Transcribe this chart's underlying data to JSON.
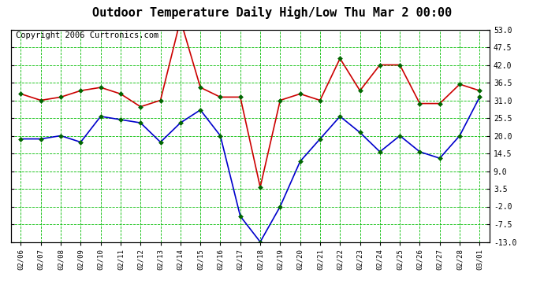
{
  "title": "Outdoor Temperature Daily High/Low Thu Mar 2 00:00",
  "copyright": "Copyright 2006 Curtronics.com",
  "x_labels": [
    "02/06",
    "02/07",
    "02/08",
    "02/09",
    "02/10",
    "02/11",
    "02/12",
    "02/13",
    "02/14",
    "02/15",
    "02/16",
    "02/17",
    "02/18",
    "02/19",
    "02/20",
    "02/21",
    "02/22",
    "02/23",
    "02/24",
    "02/25",
    "02/26",
    "02/27",
    "02/28",
    "03/01"
  ],
  "high_temps": [
    33.0,
    31.0,
    32.0,
    34.0,
    35.0,
    33.0,
    29.0,
    31.0,
    56.0,
    35.0,
    32.0,
    32.0,
    4.0,
    31.0,
    33.0,
    31.0,
    44.0,
    34.0,
    42.0,
    42.0,
    30.0,
    30.0,
    36.0,
    34.0
  ],
  "low_temps": [
    19.0,
    19.0,
    20.0,
    18.0,
    26.0,
    25.0,
    24.0,
    18.0,
    24.0,
    28.0,
    20.0,
    -5.0,
    -13.0,
    -2.0,
    12.0,
    19.0,
    26.0,
    21.0,
    15.0,
    20.0,
    15.0,
    13.0,
    20.0,
    32.0
  ],
  "high_color": "#cc0000",
  "low_color": "#0000cc",
  "marker_color": "#006600",
  "bg_color": "#ffffff",
  "grid_color": "#00bb00",
  "y_ticks": [
    -13.0,
    -7.5,
    -2.0,
    3.5,
    9.0,
    14.5,
    20.0,
    25.5,
    31.0,
    36.5,
    42.0,
    47.5,
    53.0
  ],
  "y_min": -13.0,
  "y_max": 53.0,
  "title_fontsize": 11,
  "copyright_fontsize": 7.5
}
